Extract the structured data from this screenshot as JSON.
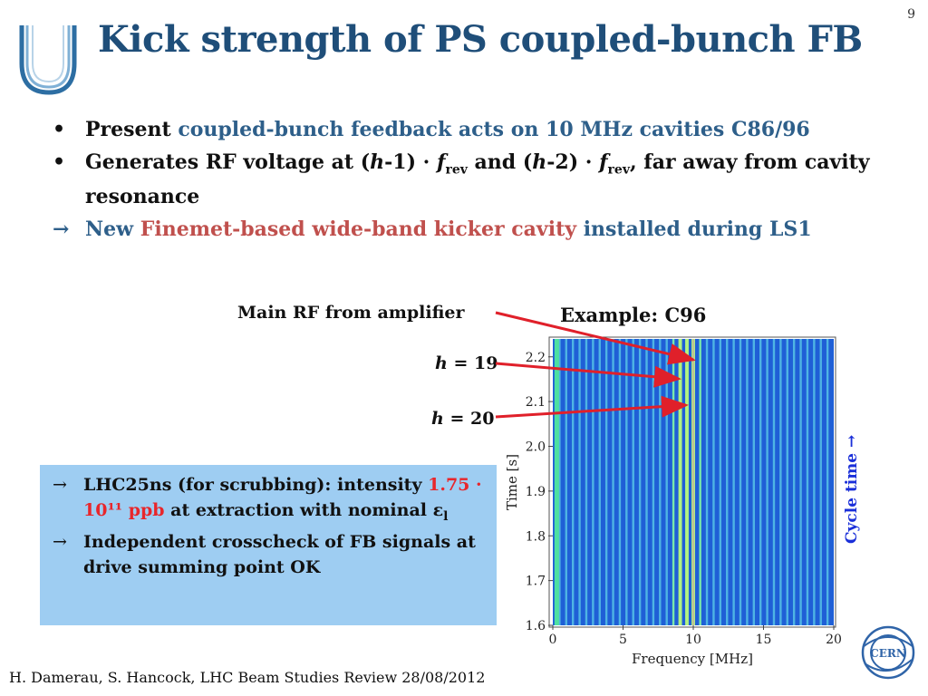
{
  "slide_number": "9",
  "title": "Kick strength of PS coupled-bunch FB",
  "bullets": {
    "b1": {
      "marker": "•",
      "lead": "Present ",
      "blue": "coupled-bunch feedback acts on 10 MHz cavities C86/96"
    },
    "b2": {
      "marker": "•",
      "t1": "Generates RF voltage at (",
      "h1": "h",
      "t2": "-1) · ",
      "f1": "f",
      "sub1": "rev",
      "t3": " and (",
      "h2": "h",
      "t4": "-2) · ",
      "f2": "f",
      "sub2": "rev",
      "t5": ", far away from cavity resonance"
    },
    "b3": {
      "marker": "→",
      "blue1": "New ",
      "red": "Finemet-based wide-band kicker cavity",
      "blue2": " installed during LS1"
    }
  },
  "callouts": {
    "main_rf": "Main RF from amplifier",
    "h19_var": "h",
    "h19_rest": " = 19",
    "h20_var": "h",
    "h20_rest": " = 20"
  },
  "example_label": "Example: C96",
  "info_box": {
    "item1": {
      "arrow": "→",
      "t1": "LHC25ns (for scrubbing): intensity ",
      "red": "1.75 ·  10¹¹ ppb",
      "t2": " at extraction with nominal ε",
      "sub": "l"
    },
    "item2": {
      "arrow": "→",
      "text": "Independent crosscheck of FB signals at drive summing point OK"
    }
  },
  "cycle_time_label": "Cycle time →",
  "footer": "H. Damerau, S. Hancock, LHC Beam Studies Review 28/08/2012",
  "logos": {
    "left": "U-logo",
    "right": "CERN"
  },
  "colors": {
    "title": "#1f4e79",
    "accent_blue": "#2e5f8a",
    "accent_red": "#c0504d",
    "highlight_red": "#e8262b",
    "box_bg": "#9ecdf2",
    "cycle_time": "#1a2fd9",
    "arrow_red": "#e0202a"
  },
  "chart_data": {
    "type": "heatmap",
    "xlabel": "Frequency [MHz]",
    "ylabel": "Time [s]",
    "xlim": [
      0,
      20
    ],
    "ylim": [
      1.6,
      2.24
    ],
    "x_ticks": [
      0,
      5,
      10,
      15,
      20
    ],
    "y_ticks": [
      1.6,
      1.7,
      1.8,
      1.9,
      2.0,
      2.1,
      2.2
    ],
    "x_tick_labels": [
      "0",
      "5",
      "10",
      "15",
      "20"
    ],
    "y_tick_labels": [
      "1.6",
      "1.7",
      "1.8",
      "1.9",
      "2.0",
      "2.1",
      "2.2"
    ],
    "revolution_harmonic_spacing_mhz": 0.477,
    "lines_of_interest_mhz": [
      9.07,
      9.55,
      10.0
    ]
  }
}
